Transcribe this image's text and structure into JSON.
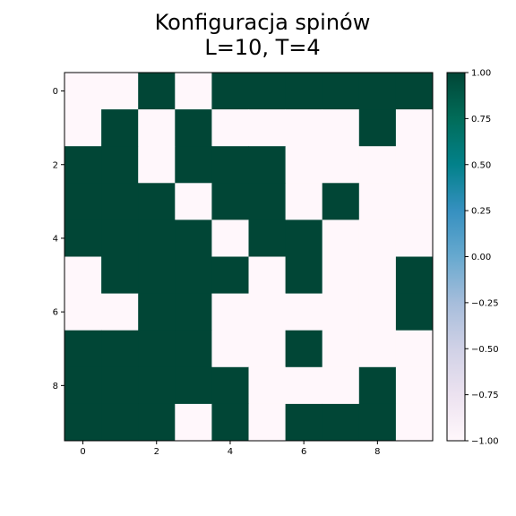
{
  "chart_data": {
    "type": "heatmap",
    "title_lines": [
      "Konfiguracja spinów",
      "L=10, T=4"
    ],
    "xlabel": "",
    "ylabel": "",
    "x_ticks": [
      "0",
      "2",
      "4",
      "6",
      "8"
    ],
    "y_ticks": [
      "0",
      "2",
      "4",
      "6",
      "8"
    ],
    "grid": false,
    "colormap": "PuBuGn",
    "colorbar": {
      "range": [
        -1.0,
        1.0
      ],
      "ticks": [
        "1.00",
        "0.75",
        "0.50",
        "0.25",
        "0.00",
        "−0.25",
        "−0.50",
        "−0.75",
        "−1.00"
      ],
      "tick_values": [
        1.0,
        0.75,
        0.5,
        0.25,
        0.0,
        -0.25,
        -0.5,
        -0.75,
        -1.0
      ]
    },
    "values": [
      [
        -1,
        -1,
        1,
        -1,
        1,
        1,
        1,
        1,
        1,
        1
      ],
      [
        -1,
        1,
        -1,
        1,
        -1,
        -1,
        -1,
        -1,
        1,
        -1
      ],
      [
        1,
        1,
        -1,
        1,
        1,
        1,
        -1,
        -1,
        -1,
        -1
      ],
      [
        1,
        1,
        1,
        -1,
        1,
        1,
        -1,
        1,
        -1,
        -1
      ],
      [
        1,
        1,
        1,
        1,
        -1,
        1,
        1,
        -1,
        -1,
        -1
      ],
      [
        -1,
        1,
        1,
        1,
        1,
        -1,
        1,
        -1,
        -1,
        1
      ],
      [
        -1,
        -1,
        1,
        1,
        -1,
        -1,
        -1,
        -1,
        -1,
        1
      ],
      [
        1,
        1,
        1,
        1,
        -1,
        -1,
        1,
        -1,
        -1,
        -1
      ],
      [
        1,
        1,
        1,
        1,
        1,
        -1,
        -1,
        -1,
        1,
        -1
      ],
      [
        1,
        1,
        1,
        -1,
        1,
        -1,
        1,
        1,
        1,
        -1
      ]
    ]
  }
}
